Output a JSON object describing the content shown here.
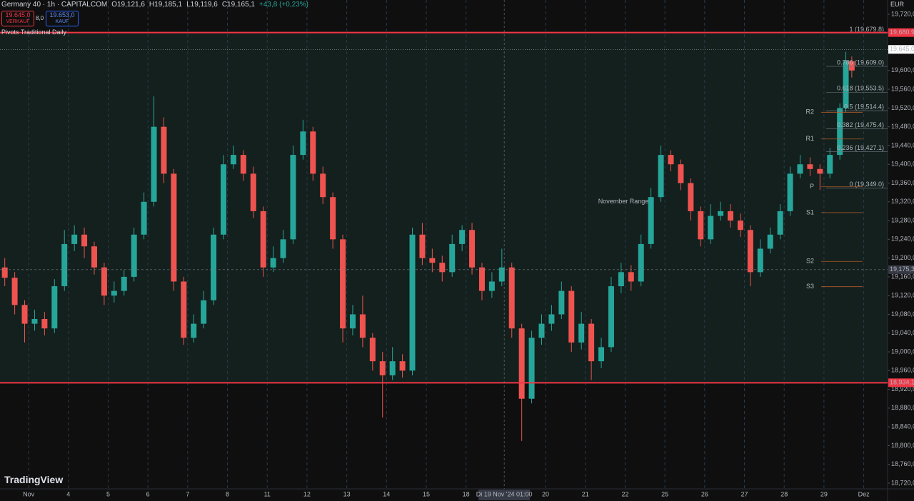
{
  "header": {
    "title": "Germany 40 · 1h · CAPITALCOM",
    "ohlc": [
      "O19,121,6",
      "H19,185,1",
      "L19,119,6",
      "C19,165,1",
      "+43,8 (+0,23%)"
    ],
    "sell": {
      "price": "19.645,0",
      "label": "VERKAUF"
    },
    "spread": "8,0",
    "buy": {
      "price": "19.653,0",
      "label": "KAUF"
    },
    "indicator": "Pivots Traditional Daily",
    "currency": "EUR",
    "brand": "TradingView"
  },
  "chart_data": {
    "type": "candlestick",
    "xlim": [
      -0.72,
      21.6
    ],
    "xticks": [
      {
        "value": 0,
        "label": "Nov"
      },
      {
        "value": 1,
        "label": "4"
      },
      {
        "value": 2,
        "label": "5"
      },
      {
        "value": 3,
        "label": "6"
      },
      {
        "value": 4,
        "label": "7"
      },
      {
        "value": 5,
        "label": "8"
      },
      {
        "value": 6,
        "label": "11"
      },
      {
        "value": 7,
        "label": "12"
      },
      {
        "value": 8,
        "label": "13"
      },
      {
        "value": 9,
        "label": "14"
      },
      {
        "value": 10,
        "label": "15"
      },
      {
        "value": 11,
        "label": "18"
      },
      {
        "value": 13,
        "label": "20"
      },
      {
        "value": 14,
        "label": "21"
      },
      {
        "value": 15,
        "label": "22"
      },
      {
        "value": 16,
        "label": "25"
      },
      {
        "value": 17,
        "label": "26"
      },
      {
        "value": 18,
        "label": "27"
      },
      {
        "value": 19,
        "label": "28"
      },
      {
        "value": 20,
        "label": "29"
      },
      {
        "value": 21,
        "label": "Dez"
      }
    ],
    "ylim": [
      18707.8,
      19750.4
    ],
    "yticks": [
      {
        "value": 19720,
        "label": "19,720,0"
      },
      {
        "value": 19680,
        "label": "19,680,0"
      },
      {
        "value": 19600,
        "label": "19,600,0"
      },
      {
        "value": 19560,
        "label": "19,560,0"
      },
      {
        "value": 19520,
        "label": "19,520,0"
      },
      {
        "value": 19480,
        "label": "19,480,0"
      },
      {
        "value": 19440,
        "label": "19,440,0"
      },
      {
        "value": 19400,
        "label": "19,400,0"
      },
      {
        "value": 19360,
        "label": "19,360,0"
      },
      {
        "value": 19320,
        "label": "19,320,0"
      },
      {
        "value": 19280,
        "label": "19,280,0"
      },
      {
        "value": 19240,
        "label": "19,240,0"
      },
      {
        "value": 19200,
        "label": "19,200,0"
      },
      {
        "value": 19160,
        "label": "19,160,0"
      },
      {
        "value": 19120,
        "label": "19,120,0"
      },
      {
        "value": 19080,
        "label": "19,080,0"
      },
      {
        "value": 19040,
        "label": "19,040,0"
      },
      {
        "value": 19000,
        "label": "19,000,0"
      },
      {
        "value": 18960,
        "label": "18,960,0"
      },
      {
        "value": 18920,
        "label": "18,920,0"
      },
      {
        "value": 18880,
        "label": "18,880,0"
      },
      {
        "value": 18840,
        "label": "18,840,0"
      },
      {
        "value": 18800,
        "label": "18,800,0"
      },
      {
        "value": 18760,
        "label": "18,760,0"
      },
      {
        "value": 18720,
        "label": "18,720,0"
      }
    ],
    "up_color": "#26a69a",
    "down_color": "#ef5350",
    "x": [
      -0.6,
      -0.35,
      -0.1,
      0.15,
      0.4,
      0.65,
      0.9,
      1.15,
      1.4,
      1.65,
      1.9,
      2.15,
      2.4,
      2.65,
      2.9,
      3.15,
      3.4,
      3.65,
      3.9,
      4.15,
      4.4,
      4.65,
      4.9,
      5.15,
      5.4,
      5.65,
      5.9,
      6.15,
      6.4,
      6.65,
      6.9,
      7.15,
      7.4,
      7.65,
      7.9,
      8.15,
      8.4,
      8.65,
      8.9,
      9.15,
      9.4,
      9.65,
      9.9,
      10.15,
      10.4,
      10.65,
      10.9,
      11.15,
      11.4,
      11.65,
      11.9,
      12.15,
      12.4,
      12.65,
      12.9,
      13.15,
      13.4,
      13.65,
      13.9,
      14.15,
      14.4,
      14.65,
      14.9,
      15.15,
      15.4,
      15.65,
      15.9,
      16.15,
      16.4,
      16.65,
      16.9,
      17.15,
      17.4,
      17.65,
      17.9,
      18.15,
      18.4,
      18.65,
      18.9,
      19.15,
      19.4,
      19.65,
      19.9,
      20.15,
      20.4,
      20.55,
      20.7
    ],
    "open": [
      19180,
      19158,
      19100,
      19060,
      19070,
      19050,
      19140,
      19230,
      19250,
      19225,
      19180,
      19120,
      19130,
      19160,
      19250,
      19320,
      19480,
      19380,
      19150,
      19030,
      19060,
      19110,
      19250,
      19400,
      19420,
      19380,
      19300,
      19180,
      19200,
      19240,
      19420,
      19470,
      19380,
      19330,
      19240,
      19050,
      19080,
      19030,
      18980,
      18950,
      18980,
      18960,
      19250,
      19200,
      19190,
      19170,
      19230,
      19260,
      19180,
      19130,
      19150,
      19180,
      19050,
      18900,
      19030,
      19060,
      19080,
      19130,
      19020,
      19060,
      18980,
      19010,
      19140,
      19170,
      19150,
      19230,
      19330,
      19420,
      19400,
      19360,
      19300,
      19240,
      19290,
      19300,
      19280,
      19260,
      19170,
      19220,
      19250,
      19300,
      19380,
      19400,
      19390,
      19380,
      19420,
      19520,
      19620
    ],
    "high": [
      19200,
      19170,
      19110,
      19090,
      19085,
      19155,
      19260,
      19270,
      19265,
      19235,
      19190,
      19150,
      19175,
      19265,
      19340,
      19545,
      19500,
      19390,
      19160,
      19080,
      19130,
      19265,
      19420,
      19440,
      19430,
      19395,
      19310,
      19225,
      19260,
      19440,
      19495,
      19480,
      19395,
      19340,
      19250,
      19100,
      19120,
      19040,
      19000,
      19010,
      18995,
      19265,
      19275,
      19220,
      19205,
      19250,
      19270,
      19275,
      19190,
      19170,
      19220,
      19190,
      19060,
      19045,
      19080,
      19100,
      19150,
      19140,
      19085,
      19070,
      19030,
      19160,
      19190,
      19185,
      19250,
      19350,
      19440,
      19430,
      19410,
      19370,
      19310,
      19315,
      19320,
      19315,
      19295,
      19270,
      19240,
      19265,
      19315,
      19395,
      19420,
      19415,
      19400,
      19435,
      19530,
      19640,
      19630
    ],
    "low": [
      19140,
      19080,
      19020,
      19045,
      19035,
      19040,
      19130,
      19215,
      19200,
      19165,
      19100,
      19105,
      19120,
      19150,
      19240,
      19310,
      19360,
      19130,
      19015,
      19020,
      19050,
      19100,
      19240,
      19390,
      19365,
      19285,
      19160,
      19170,
      19190,
      19230,
      19410,
      19365,
      19315,
      19220,
      19020,
      19035,
      19010,
      18960,
      18860,
      18940,
      18945,
      18950,
      19185,
      19170,
      19150,
      19160,
      19215,
      19165,
      19110,
      19115,
      19140,
      19030,
      18810,
      18890,
      19015,
      19045,
      19070,
      19000,
      19005,
      18940,
      18965,
      19000,
      19125,
      19130,
      19140,
      19220,
      19320,
      19385,
      19345,
      19280,
      19225,
      19230,
      19280,
      19265,
      19245,
      19140,
      19160,
      19210,
      19240,
      19290,
      19370,
      19375,
      19345,
      19370,
      19410,
      19510,
      19585
    ],
    "close": [
      19158,
      19100,
      19060,
      19070,
      19050,
      19140,
      19230,
      19250,
      19225,
      19180,
      19120,
      19130,
      19160,
      19250,
      19320,
      19480,
      19380,
      19150,
      19030,
      19060,
      19110,
      19250,
      19400,
      19420,
      19380,
      19300,
      19180,
      19200,
      19240,
      19420,
      19470,
      19380,
      19330,
      19240,
      19050,
      19080,
      19030,
      18980,
      18950,
      18980,
      18960,
      19250,
      19200,
      19190,
      19170,
      19230,
      19260,
      19180,
      19130,
      19150,
      19180,
      19050,
      18900,
      19030,
      19060,
      19080,
      19130,
      19020,
      19060,
      18980,
      19010,
      19140,
      19170,
      19150,
      19230,
      19330,
      19420,
      19400,
      19360,
      19300,
      19240,
      19290,
      19300,
      19280,
      19260,
      19170,
      19220,
      19250,
      19300,
      19380,
      19400,
      19390,
      19380,
      19420,
      19520,
      19620,
      19600
    ],
    "levels": [
      {
        "value": 19680.9,
        "label": "19,680.9",
        "color": "#f23645"
      },
      {
        "value": 18934.1,
        "label": "18,934,1",
        "color": "#f23645"
      }
    ],
    "range_annotation": "November Range",
    "last_price": {
      "value": 19645,
      "label": "19,645,0"
    },
    "crosshair": {
      "x": 11.96,
      "x_label": "Di 19 Nov '24 01:00",
      "y": 19175.3,
      "y_label": "19,175,3"
    },
    "fib": [
      {
        "value": 19679.8,
        "label": "1 (19,679.8)"
      },
      {
        "value": 19609.0,
        "label": "0.786 (19,609.0)"
      },
      {
        "value": 19553.5,
        "label": "0.618 (19,553.5)"
      },
      {
        "value": 19514.4,
        "label": "0.5 (19,514.4)"
      },
      {
        "value": 19475.4,
        "label": "0.382 (19,475.4)"
      },
      {
        "value": 19427.1,
        "label": "0.236 (19,427.1)"
      },
      {
        "value": 19349.0,
        "label": "0 (19,349.0)"
      }
    ],
    "pivots": [
      {
        "label": "R2",
        "value": 19511
      },
      {
        "label": "R1",
        "value": 19454
      },
      {
        "label": "P",
        "value": 19352
      },
      {
        "label": "S1",
        "value": 19297
      },
      {
        "label": "S2",
        "value": 19193
      },
      {
        "label": "S3",
        "value": 19139
      }
    ]
  }
}
